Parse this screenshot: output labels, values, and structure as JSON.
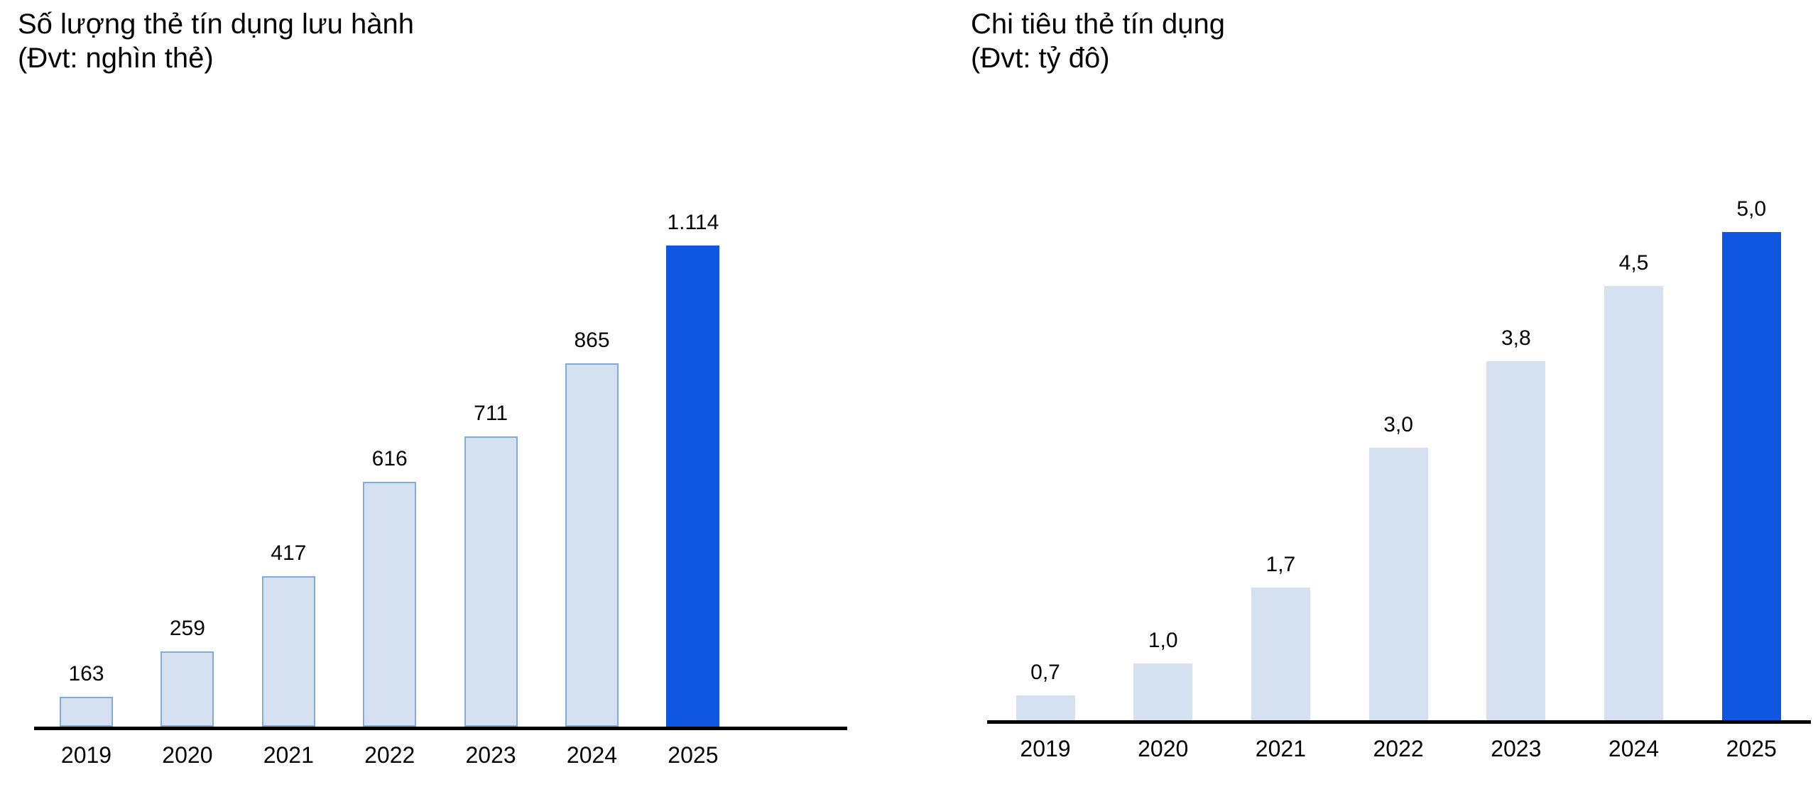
{
  "page": {
    "background": "#ffffff"
  },
  "chart_data": [
    {
      "type": "bar",
      "title": "Số lượng thẻ tín dụng lưu hành",
      "subtitle": "(Đvt: nghìn thẻ)",
      "categories": [
        "2019",
        "2020",
        "2021",
        "2022",
        "2023",
        "2024",
        "2025"
      ],
      "values": [
        163,
        259,
        417,
        616,
        711,
        865,
        1114
      ],
      "value_labels": [
        "163",
        "259",
        "417",
        "616",
        "711",
        "865",
        "1.114"
      ],
      "ylim": [
        100,
        1114
      ],
      "highlight_index": 6,
      "grid": false,
      "legend": false,
      "xlabel": "",
      "ylabel": "",
      "colors": {
        "bar_fill": "#d5e1f0",
        "bar_border": "#84aad8",
        "highlight": "#0f56e2",
        "axis": "#000000",
        "text": "#050505"
      }
    },
    {
      "type": "bar",
      "title": "Chi tiêu thẻ tín dụng",
      "subtitle": "(Đvt: tỷ đô)",
      "categories": [
        "2019",
        "2020",
        "2021",
        "2022",
        "2023",
        "2024",
        "2025"
      ],
      "values": [
        0.7,
        1.0,
        1.7,
        3.0,
        3.8,
        4.5,
        5.0
      ],
      "value_labels": [
        "0,7",
        "1,0",
        "1,7",
        "3,0",
        "3,8",
        "4,5",
        "5,0"
      ],
      "ylim": [
        0.47,
        5.0
      ],
      "highlight_index": 6,
      "grid": false,
      "legend": false,
      "xlabel": "",
      "ylabel": "",
      "colors": {
        "bar_fill": "#d5e1f0",
        "bar_border": null,
        "highlight": "#0f56e2",
        "axis": "#000000",
        "text": "#050505"
      }
    }
  ]
}
